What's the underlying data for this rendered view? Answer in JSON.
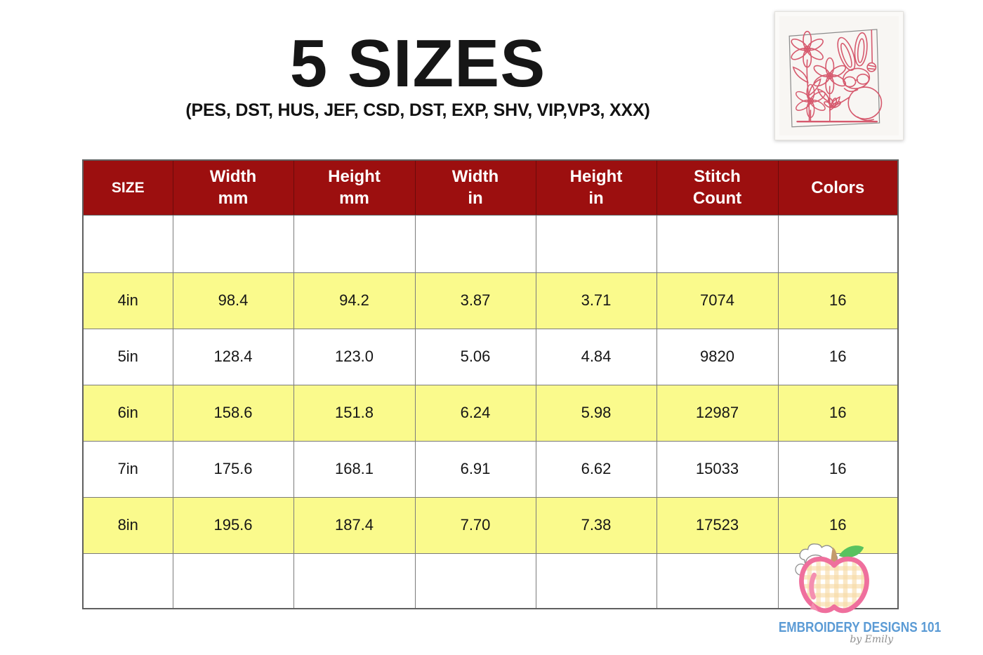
{
  "header": {
    "title": "5 SIZES",
    "subtitle": "(PES, DST, HUS, JEF, CSD, DST, EXP, SHV, VIP,VP3, XXX)"
  },
  "thumbnail": {
    "description": "Redwork bunny with sunglasses and daisies embroidery preview"
  },
  "table": {
    "headers": [
      "SIZE",
      "Width\nmm",
      "Height\nmm",
      "Width\nin",
      "Height\nin",
      "Stitch\nCount",
      "Colors"
    ],
    "rows": [
      {
        "size": "",
        "width_mm": "",
        "height_mm": "",
        "width_in": "",
        "height_in": "",
        "stitch_count": "",
        "colors": "",
        "highlighted": false
      },
      {
        "size": "4in",
        "width_mm": "98.4",
        "height_mm": "94.2",
        "width_in": "3.87",
        "height_in": "3.71",
        "stitch_count": "7074",
        "colors": "16",
        "highlighted": true
      },
      {
        "size": "5in",
        "width_mm": "128.4",
        "height_mm": "123.0",
        "width_in": "5.06",
        "height_in": "4.84",
        "stitch_count": "9820",
        "colors": "16",
        "highlighted": false
      },
      {
        "size": "6in",
        "width_mm": "158.6",
        "height_mm": "151.8",
        "width_in": "6.24",
        "height_in": "5.98",
        "stitch_count": "12987",
        "colors": "16",
        "highlighted": true
      },
      {
        "size": "7in",
        "width_mm": "175.6",
        "height_mm": "168.1",
        "width_in": "6.91",
        "height_in": "6.62",
        "stitch_count": "15033",
        "colors": "16",
        "highlighted": false
      },
      {
        "size": "8in",
        "width_mm": "195.6",
        "height_mm": "187.4",
        "width_in": "7.70",
        "height_in": "7.38",
        "stitch_count": "17523",
        "colors": "16",
        "highlighted": true
      },
      {
        "size": "",
        "width_mm": "",
        "height_mm": "",
        "width_in": "",
        "height_in": "",
        "stitch_count": "",
        "colors": "",
        "highlighted": false
      }
    ]
  },
  "brand": {
    "name": "EMBROIDERY DESIGNS 101",
    "byline": "by Emily"
  },
  "colors": {
    "header_bg": "#9C0F0F",
    "row_highlight": "#FAFA8C",
    "grid_line": "#7B7B7B",
    "brand_blue": "#5B9BD5",
    "design_red": "#D65A6E",
    "apple_pink": "#EF6F9D",
    "leaf_green": "#59C25F",
    "stem_brown": "#C49A6C",
    "gingham_peach": "#F6D9A4"
  }
}
